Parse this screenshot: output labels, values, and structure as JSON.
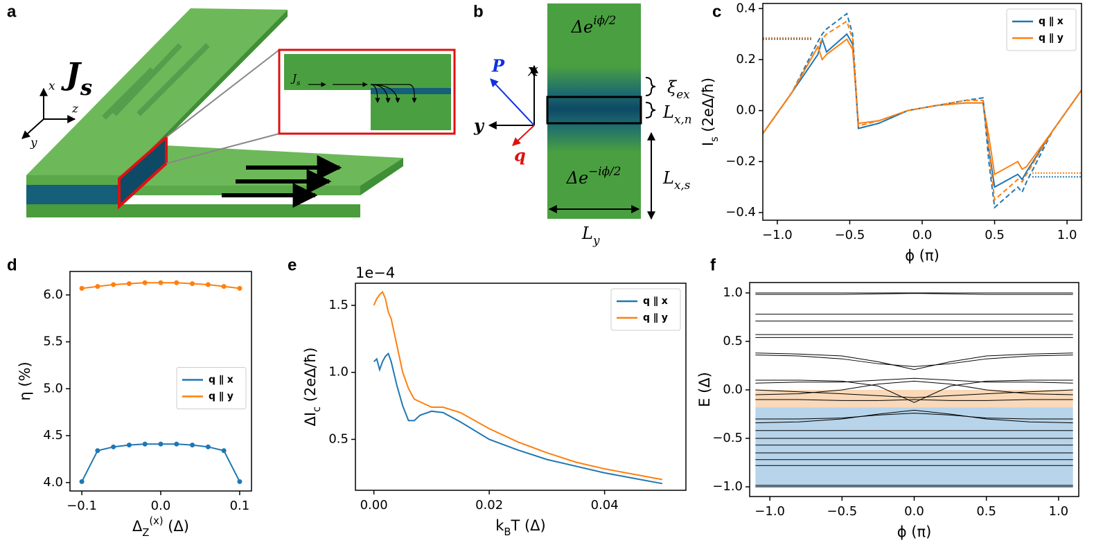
{
  "panels": {
    "a": {
      "label": "a",
      "Js": "J_s",
      "axis_x": "x",
      "axis_y": "y",
      "axis_z": "z",
      "inset_Js": "J_s"
    },
    "b": {
      "label": "b",
      "top": "Δe^{iϕ/2}",
      "bottom": "Δe^{−iϕ/2}",
      "axis_x": "x",
      "axis_y": "y",
      "P": "P",
      "q": "q",
      "xi": "ξ_{ex}",
      "Lxn": "L_{x,n}",
      "Lxs": "L_{x,s}",
      "Ly": "L_y"
    }
  },
  "chart_data": [
    {
      "type": "line",
      "panel": "c",
      "xlabel": "ϕ (π)",
      "ylabel": "I_s (2eΔ/ħ)",
      "legend": "upper right",
      "xlim": [
        -1.1,
        1.1
      ],
      "ylim": [
        -0.43,
        0.42
      ],
      "xticks": [
        {
          "value": -1.0,
          "label": "−1.0"
        },
        {
          "value": -0.5,
          "label": "−0.5"
        },
        {
          "value": 0,
          "label": "0.0"
        },
        0.5,
        {
          "value": 1.0,
          "label": "1.0"
        }
      ],
      "yticks": [
        {
          "value": -0.4,
          "label": "−0.4"
        },
        {
          "value": -0.2,
          "label": "−0.2"
        },
        {
          "value": 0,
          "label": "0.0"
        },
        0.2,
        0.4
      ],
      "x": [
        -1.1,
        -0.9,
        -0.72,
        -0.69,
        -0.66,
        -0.52,
        -0.48,
        -0.44,
        -0.3,
        -0.1,
        0.1,
        0.3,
        0.42,
        0.46,
        0.5,
        0.66,
        0.69,
        0.72,
        0.9,
        1.1
      ],
      "series": [
        {
          "name": "q ∥ x",
          "color": "#1f77b4",
          "values": [
            -0.09,
            0.07,
            0.22,
            0.28,
            0.23,
            0.3,
            0.26,
            -0.07,
            -0.05,
            0.0,
            0.02,
            0.03,
            0.03,
            -0.15,
            -0.3,
            -0.25,
            -0.27,
            -0.24,
            -0.08,
            0.08
          ]
        },
        {
          "name": "q ∥ y",
          "color": "#ff7f0e",
          "values": [
            -0.09,
            0.07,
            0.25,
            0.2,
            0.22,
            0.28,
            0.24,
            -0.05,
            -0.04,
            0.0,
            0.02,
            0.03,
            0.03,
            -0.1,
            -0.25,
            -0.2,
            -0.23,
            -0.22,
            -0.08,
            0.08
          ]
        },
        {
          "color": "#1f77b4",
          "style": "dashed",
          "values": [
            -0.09,
            0.07,
            0.27,
            0.3,
            0.32,
            0.38,
            0.3,
            -0.07,
            -0.05,
            0.0,
            0.02,
            0.04,
            0.05,
            -0.2,
            -0.38,
            -0.3,
            -0.32,
            -0.28,
            -0.08,
            0.08
          ]
        },
        {
          "color": "#ff7f0e",
          "style": "dashed",
          "values": [
            -0.09,
            0.07,
            0.25,
            0.28,
            0.3,
            0.35,
            0.28,
            -0.06,
            -0.04,
            0.0,
            0.02,
            0.04,
            0.04,
            -0.15,
            -0.35,
            -0.27,
            -0.28,
            -0.25,
            -0.08,
            0.08
          ]
        }
      ],
      "hlines": [
        {
          "y": 0.28,
          "xrange": [
            -1.1,
            -0.76
          ],
          "color": "#1f77b4"
        },
        {
          "y": 0.285,
          "xrange": [
            -1.1,
            -0.76
          ],
          "color": "#ff7f0e"
        },
        {
          "y": -0.26,
          "xrange": [
            0.76,
            1.1
          ],
          "color": "#1f77b4"
        },
        {
          "y": -0.245,
          "xrange": [
            0.76,
            1.1
          ],
          "color": "#ff7f0e"
        }
      ]
    },
    {
      "type": "line",
      "panel": "d",
      "xlabel": "Δ_Z^{(x)} (Δ)",
      "ylabel": "η (%)",
      "legend": "center right",
      "markers": true,
      "xlim": [
        -0.115,
        0.115
      ],
      "ylim": [
        3.91,
        6.25
      ],
      "xticks": [
        {
          "value": -0.1,
          "label": "−0.1"
        },
        {
          "value": 0,
          "label": "0.0"
        },
        0.1
      ],
      "yticks": [
        {
          "value": 4,
          "label": "4.0"
        },
        4.5,
        {
          "value": 5,
          "label": "5.0"
        },
        5.5,
        {
          "value": 6,
          "label": "6.0"
        }
      ],
      "x": [
        -0.1,
        -0.08,
        -0.06,
        -0.04,
        -0.02,
        0,
        0.02,
        0.04,
        0.06,
        0.08,
        0.1
      ],
      "series": [
        {
          "name": "q ∥ x",
          "color": "#1f77b4",
          "values": [
            4.01,
            4.34,
            4.38,
            4.4,
            4.41,
            4.41,
            4.41,
            4.4,
            4.38,
            4.34,
            4.01
          ]
        },
        {
          "name": "q ∥ y",
          "color": "#ff7f0e",
          "values": [
            6.07,
            6.09,
            6.11,
            6.12,
            6.13,
            6.13,
            6.13,
            6.12,
            6.11,
            6.09,
            6.07
          ]
        }
      ]
    },
    {
      "type": "line",
      "panel": "e",
      "xlabel": "k_BT (Δ)",
      "ylabel": "ΔI_c (2eΔ/ħ)",
      "offset_text": "1e−4",
      "legend": "upper right",
      "xlim": [
        -0.0032,
        0.0541
      ],
      "ylim": [
        0.12,
        1.665
      ],
      "xticks": [
        {
          "value": 0,
          "label": "0.00"
        },
        0.02,
        0.04
      ],
      "yticks": [
        0.5,
        {
          "value": 1,
          "label": "1.0"
        },
        1.5
      ],
      "x": [
        0,
        0.0005,
        0.001,
        0.0015,
        0.002,
        0.0025,
        0.003,
        0.004,
        0.005,
        0.006,
        0.007,
        0.008,
        0.01,
        0.012,
        0.015,
        0.02,
        0.025,
        0.03,
        0.035,
        0.04,
        0.045,
        0.05
      ],
      "series": [
        {
          "name": "q ∥ x",
          "color": "#1f77b4",
          "values": [
            1.08,
            1.1,
            1.02,
            1.08,
            1.12,
            1.14,
            1.08,
            0.9,
            0.75,
            0.64,
            0.64,
            0.68,
            0.71,
            0.7,
            0.63,
            0.5,
            0.42,
            0.35,
            0.3,
            0.25,
            0.21,
            0.17
          ]
        },
        {
          "name": "q ∥ y",
          "color": "#ff7f0e",
          "values": [
            1.5,
            1.55,
            1.58,
            1.6,
            1.55,
            1.45,
            1.4,
            1.2,
            1.0,
            0.88,
            0.8,
            0.78,
            0.74,
            0.74,
            0.7,
            0.58,
            0.48,
            0.4,
            0.33,
            0.28,
            0.24,
            0.2
          ]
        }
      ]
    },
    {
      "type": "line",
      "panel": "f",
      "xlabel": "ϕ (π)",
      "ylabel": "E (Δ)",
      "color": "#000000",
      "linewidth": 1,
      "xlim": [
        -1.14,
        1.14
      ],
      "ylim": [
        -1.1,
        1.107
      ],
      "xticks": [
        {
          "value": -1,
          "label": "−1.0"
        },
        {
          "value": -0.5,
          "label": "−0.5"
        },
        {
          "value": 0,
          "label": "0.0"
        },
        0.5,
        {
          "value": 1,
          "label": "1.0"
        }
      ],
      "yticks": [
        {
          "value": -1,
          "label": "−1.0"
        },
        {
          "value": -0.5,
          "label": "−0.5"
        },
        {
          "value": 0,
          "label": "0.0"
        },
        0.5,
        {
          "value": 1,
          "label": "1.0"
        }
      ],
      "hspans": [
        {
          "ymin": -0.18,
          "ymax": 0,
          "xrange": [
            -1.1,
            1.1
          ],
          "color": "#f9d9b9"
        },
        {
          "ymin": -1.0,
          "ymax": -0.18,
          "xrange": [
            -1.1,
            1.1
          ],
          "color": "#b8d4ea"
        }
      ],
      "x": [
        -1.1,
        -0.8,
        -0.5,
        -0.25,
        0,
        0.25,
        0.5,
        0.8,
        1.1
      ],
      "series": [
        {
          "values": [
            1.0,
            1.0,
            1.0,
            1.0,
            1.0,
            1.0,
            1.0,
            1.0,
            1.0
          ]
        },
        {
          "values": [
            0.985,
            0.985,
            0.985,
            0.99,
            0.995,
            0.99,
            0.985,
            0.985,
            0.985
          ]
        },
        {
          "values": [
            0.78,
            0.78,
            0.78,
            0.78,
            0.78,
            0.78,
            0.78,
            0.78,
            0.78
          ]
        },
        {
          "values": [
            0.71,
            0.71,
            0.71,
            0.71,
            0.71,
            0.71,
            0.71,
            0.71,
            0.71
          ]
        },
        {
          "values": [
            0.57,
            0.57,
            0.57,
            0.57,
            0.57,
            0.57,
            0.57,
            0.57,
            0.57
          ]
        },
        {
          "values": [
            0.54,
            0.54,
            0.54,
            0.54,
            0.54,
            0.54,
            0.54,
            0.54,
            0.54
          ]
        },
        {
          "values": [
            0.38,
            0.37,
            0.35,
            0.29,
            0.21,
            0.29,
            0.35,
            0.37,
            0.38
          ]
        },
        {
          "values": [
            0.36,
            0.35,
            0.32,
            0.27,
            0.24,
            0.27,
            0.32,
            0.35,
            0.36
          ]
        },
        {
          "values": [
            0.1,
            0.1,
            0.09,
            0.04,
            -0.13,
            0.04,
            0.09,
            0.1,
            0.1
          ]
        },
        {
          "values": [
            0.07,
            0.08,
            0.08,
            0.1,
            0.12,
            0.1,
            0.08,
            0.08,
            0.07
          ]
        },
        {
          "values": [
            -0.05,
            -0.04,
            0.0,
            0.06,
            0.09,
            0.06,
            0.0,
            -0.04,
            -0.05
          ]
        },
        {
          "values": [
            -0.1,
            -0.1,
            -0.11,
            -0.11,
            -0.1,
            -0.11,
            -0.11,
            -0.1,
            -0.1
          ]
        },
        {
          "values": [
            0.0,
            -0.02,
            -0.04,
            -0.06,
            -0.08,
            -0.06,
            -0.04,
            -0.02,
            0.0
          ]
        },
        {
          "values": [
            -0.34,
            -0.33,
            -0.3,
            -0.25,
            -0.21,
            -0.25,
            -0.3,
            -0.33,
            -0.34
          ]
        },
        {
          "values": [
            -0.3,
            -0.3,
            -0.29,
            -0.26,
            -0.24,
            -0.26,
            -0.29,
            -0.3,
            -0.3
          ]
        },
        {
          "values": [
            -0.42,
            -0.42,
            -0.42,
            -0.42,
            -0.42,
            -0.42,
            -0.42,
            -0.42,
            -0.42
          ]
        },
        {
          "values": [
            -0.5,
            -0.5,
            -0.5,
            -0.5,
            -0.5,
            -0.5,
            -0.5,
            -0.5,
            -0.5
          ]
        },
        {
          "values": [
            -0.57,
            -0.57,
            -0.57,
            -0.57,
            -0.57,
            -0.57,
            -0.57,
            -0.57,
            -0.57
          ]
        },
        {
          "values": [
            -0.65,
            -0.65,
            -0.65,
            -0.65,
            -0.65,
            -0.65,
            -0.65,
            -0.65,
            -0.65
          ]
        },
        {
          "values": [
            -0.72,
            -0.72,
            -0.72,
            -0.72,
            -0.72,
            -0.72,
            -0.72,
            -0.72,
            -0.72
          ]
        },
        {
          "values": [
            -0.78,
            -0.78,
            -0.78,
            -0.78,
            -0.78,
            -0.78,
            -0.78,
            -0.78,
            -0.78
          ]
        },
        {
          "values": [
            -0.985,
            -0.985,
            -0.985,
            -0.985,
            -0.985,
            -0.985,
            -0.985,
            -0.985,
            -0.985
          ]
        },
        {
          "values": [
            -1.0,
            -1.0,
            -1.0,
            -1.0,
            -1.0,
            -1.0,
            -1.0,
            -1.0,
            -1.0
          ]
        }
      ]
    }
  ]
}
